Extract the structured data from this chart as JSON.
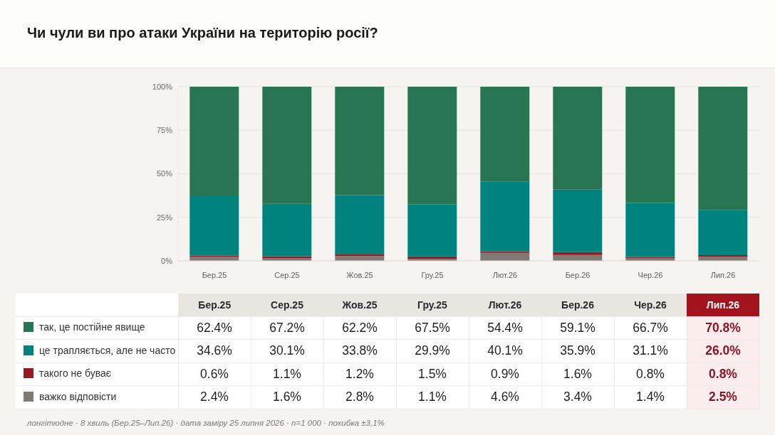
{
  "chart_data": {
    "type": "bar",
    "title": "Чи чули ви про атаки України на територію росії?",
    "categories": [
      "Бер.25",
      "Сер.25",
      "Жов.25",
      "Гру.25",
      "Лют.26",
      "Бер.26",
      "Чер.26",
      "Лип.26"
    ],
    "stacked": true,
    "ylim": [
      0,
      100
    ],
    "yticks": [
      {
        "value": 0,
        "label": "0%"
      },
      {
        "value": 25,
        "label": "25%"
      },
      {
        "value": 50,
        "label": "50%"
      },
      {
        "value": 75,
        "label": "75%"
      },
      {
        "value": 100,
        "label": "100%"
      }
    ],
    "grid": "y",
    "legend": "bottom",
    "series": [
      {
        "name": "важко відповісти",
        "color": "#807a76",
        "values": [
          2.4,
          1.6,
          2.8,
          1.1,
          4.6,
          3.4,
          1.4,
          2.5
        ],
        "value_labels": [
          "2.4%",
          "1.6%",
          "2.8%",
          "1.1%",
          "4.6%",
          "3.4%",
          "1.4%",
          "2.5%"
        ]
      },
      {
        "name": "такого не буває",
        "color": "#961a22",
        "values": [
          0.6,
          1.1,
          1.2,
          1.5,
          0.9,
          1.6,
          0.8,
          0.8
        ],
        "value_labels": [
          "0.6%",
          "1.1%",
          "1.2%",
          "1.5%",
          "0.9%",
          "1.6%",
          "0.8%",
          "0.8%"
        ]
      },
      {
        "name": "це трапляється, але не часто",
        "color": "#00827f",
        "values": [
          34.6,
          30.1,
          33.8,
          29.9,
          40.1,
          35.9,
          31.1,
          26.0
        ],
        "value_labels": [
          "34.6%",
          "30.1%",
          "33.8%",
          "29.9%",
          "40.1%",
          "35.9%",
          "31.1%",
          "26.0%"
        ]
      },
      {
        "name": "так, це постійне явище",
        "color": "#277552",
        "values": [
          62.4,
          67.2,
          62.2,
          67.5,
          54.4,
          59.1,
          66.7,
          70.8
        ],
        "value_labels": [
          "62.4%",
          "67.2%",
          "62.2%",
          "67.5%",
          "54.4%",
          "59.1%",
          "66.7%",
          "70.8%"
        ]
      }
    ],
    "annotations": [
      "лонгітюдне · 8 хвиль (Бер.25–Лип.26) · дата заміру 25 липня 2026 · n=1 000 · похибка ±3,1%"
    ]
  }
}
